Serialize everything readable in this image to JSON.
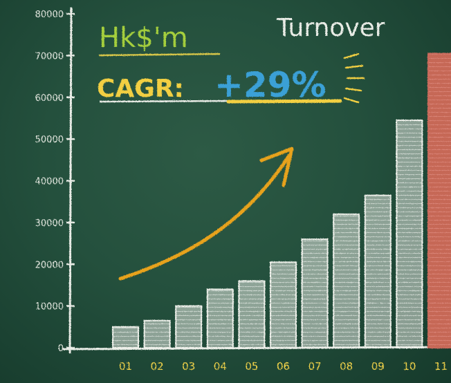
{
  "header": {
    "unit_label": "Hk$'m",
    "metric_label": "Turnover",
    "cagr_prefix": "CAGR:",
    "cagr_value": "+29%"
  },
  "colors": {
    "board": "#24503d",
    "chalk_white": "#e9ece6",
    "unit_green": "#a5cf3c",
    "cagr_yellow": "#f2cf43",
    "cagr_blue": "#3aa0d6",
    "arrow_orange": "#e7a21d",
    "highlight_red": "#c86a5c"
  },
  "chart_data": {
    "type": "bar",
    "title": "",
    "xlabel": "",
    "ylabel": "Hk$'m",
    "categories": [
      "01",
      "02",
      "03",
      "04",
      "05",
      "06",
      "07",
      "08",
      "09",
      "10",
      "11"
    ],
    "values": [
      5000,
      6500,
      10000,
      14000,
      16000,
      20500,
      26000,
      32000,
      36500,
      54500,
      70500
    ],
    "highlight_index": 10,
    "ylim": [
      0,
      80000
    ],
    "yticks": [
      {
        "value": 0,
        "label": "0"
      },
      {
        "value": 10000,
        "label": "10000"
      },
      {
        "value": 20000,
        "label": "20000"
      },
      {
        "value": 30000,
        "label": "30000"
      },
      {
        "value": 40000,
        "label": "40000"
      },
      {
        "value": 50000,
        "label": "50000"
      },
      {
        "value": 60000,
        "label": "60000"
      },
      {
        "value": 70000,
        "label": "70000"
      },
      {
        "value": 80000,
        "label": "80000"
      }
    ],
    "annotation": "CAGR: +29%",
    "grid": false,
    "legend": "none"
  }
}
